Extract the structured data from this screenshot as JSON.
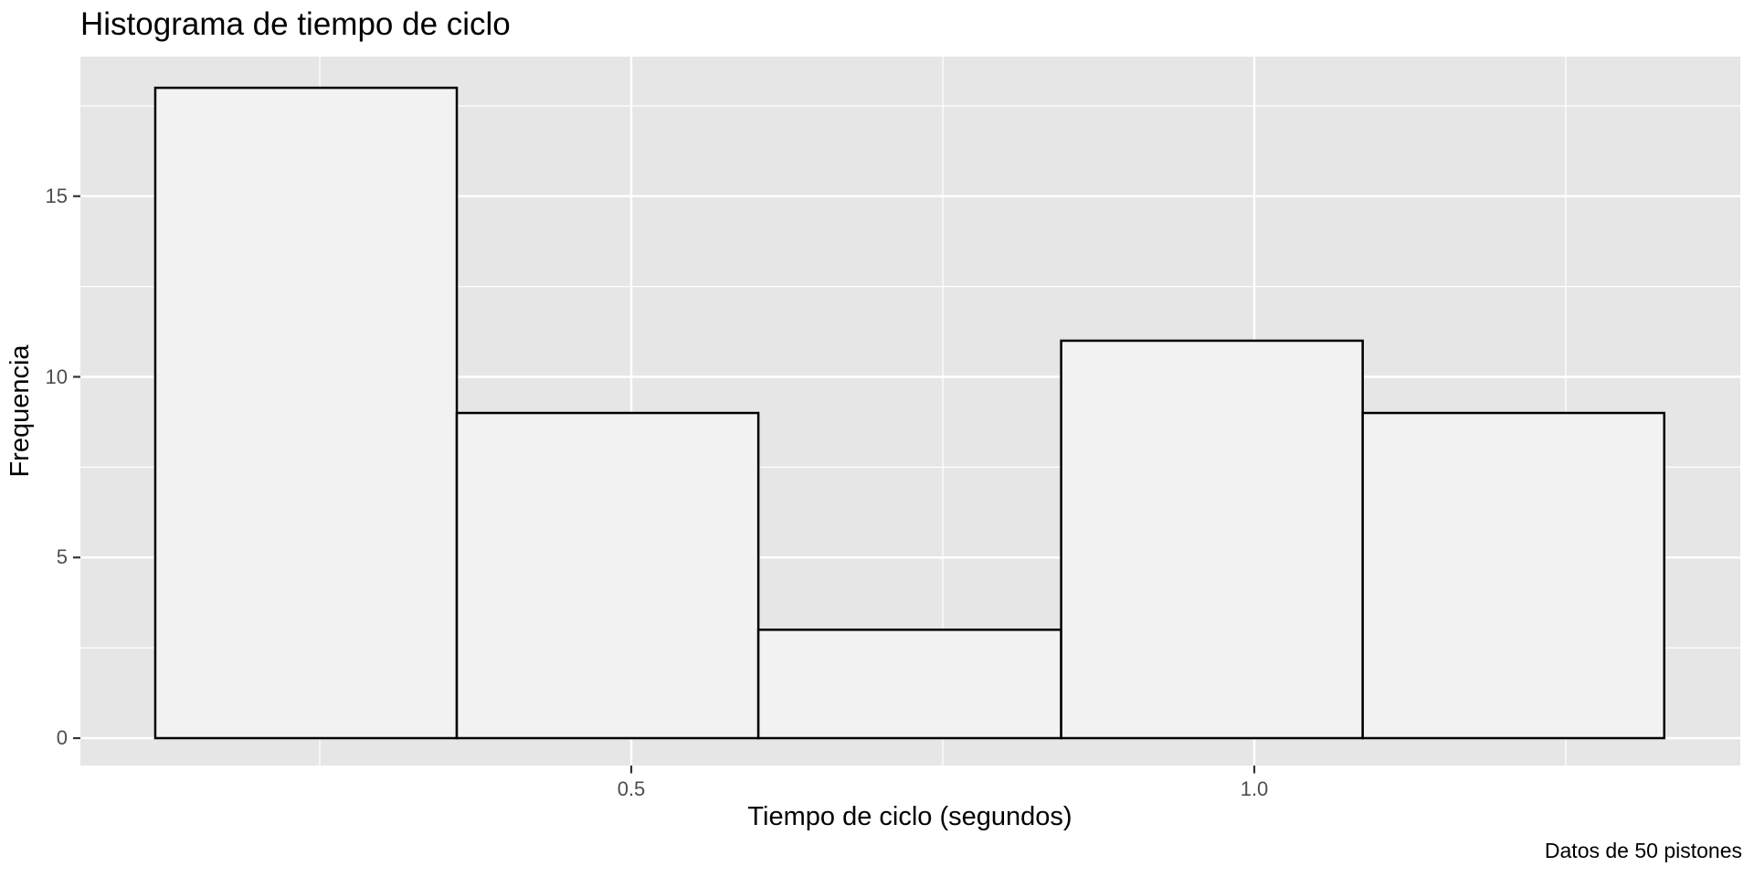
{
  "plot": {
    "title": "Histograma de tiempo de ciclo",
    "caption": "Datos de 50 pistones",
    "x_axis": {
      "title": "Tiempo de ciclo (segundos)",
      "tick_labels": [
        "0.5",
        "1.0"
      ],
      "tick_values": [
        0.5,
        1.0
      ],
      "minor_tick_values": [
        0.25,
        0.75,
        1.25
      ]
    },
    "y_axis": {
      "title": "Frequencia",
      "tick_labels": [
        "0",
        "5",
        "10",
        "15"
      ],
      "tick_values": [
        0,
        5,
        10,
        15
      ],
      "minor_tick_values": [
        2.5,
        7.5,
        12.5,
        17.5
      ]
    }
  },
  "colors": {
    "page_background": "#FFFFFF",
    "panel_background": "#E6E6E6",
    "gridline": "#FFFFFF",
    "bar_fill": "#F2F2F2",
    "bar_stroke": "#000000",
    "tick_mark": "#333333",
    "tick_label": "#4D4D4D",
    "text": "#000000"
  },
  "chart_data": {
    "type": "bar",
    "subtype": "histogram",
    "title": "Histograma de tiempo de ciclo",
    "xlabel": "Tiempo de ciclo (segundos)",
    "ylabel": "Frequencia",
    "caption": "Datos de 50 pistones",
    "bin_edges": [
      0.118,
      0.36,
      0.602,
      0.845,
      1.087,
      1.329
    ],
    "counts": [
      18,
      9,
      3,
      11,
      9
    ],
    "total_n": 50,
    "xlim": [
      0.058,
      1.39
    ],
    "ylim": [
      -0.76,
      18.86
    ],
    "x_major_ticks": [
      0.5,
      1.0
    ],
    "y_major_ticks": [
      0,
      5,
      10,
      15
    ],
    "grid": "on",
    "legend": "none"
  }
}
